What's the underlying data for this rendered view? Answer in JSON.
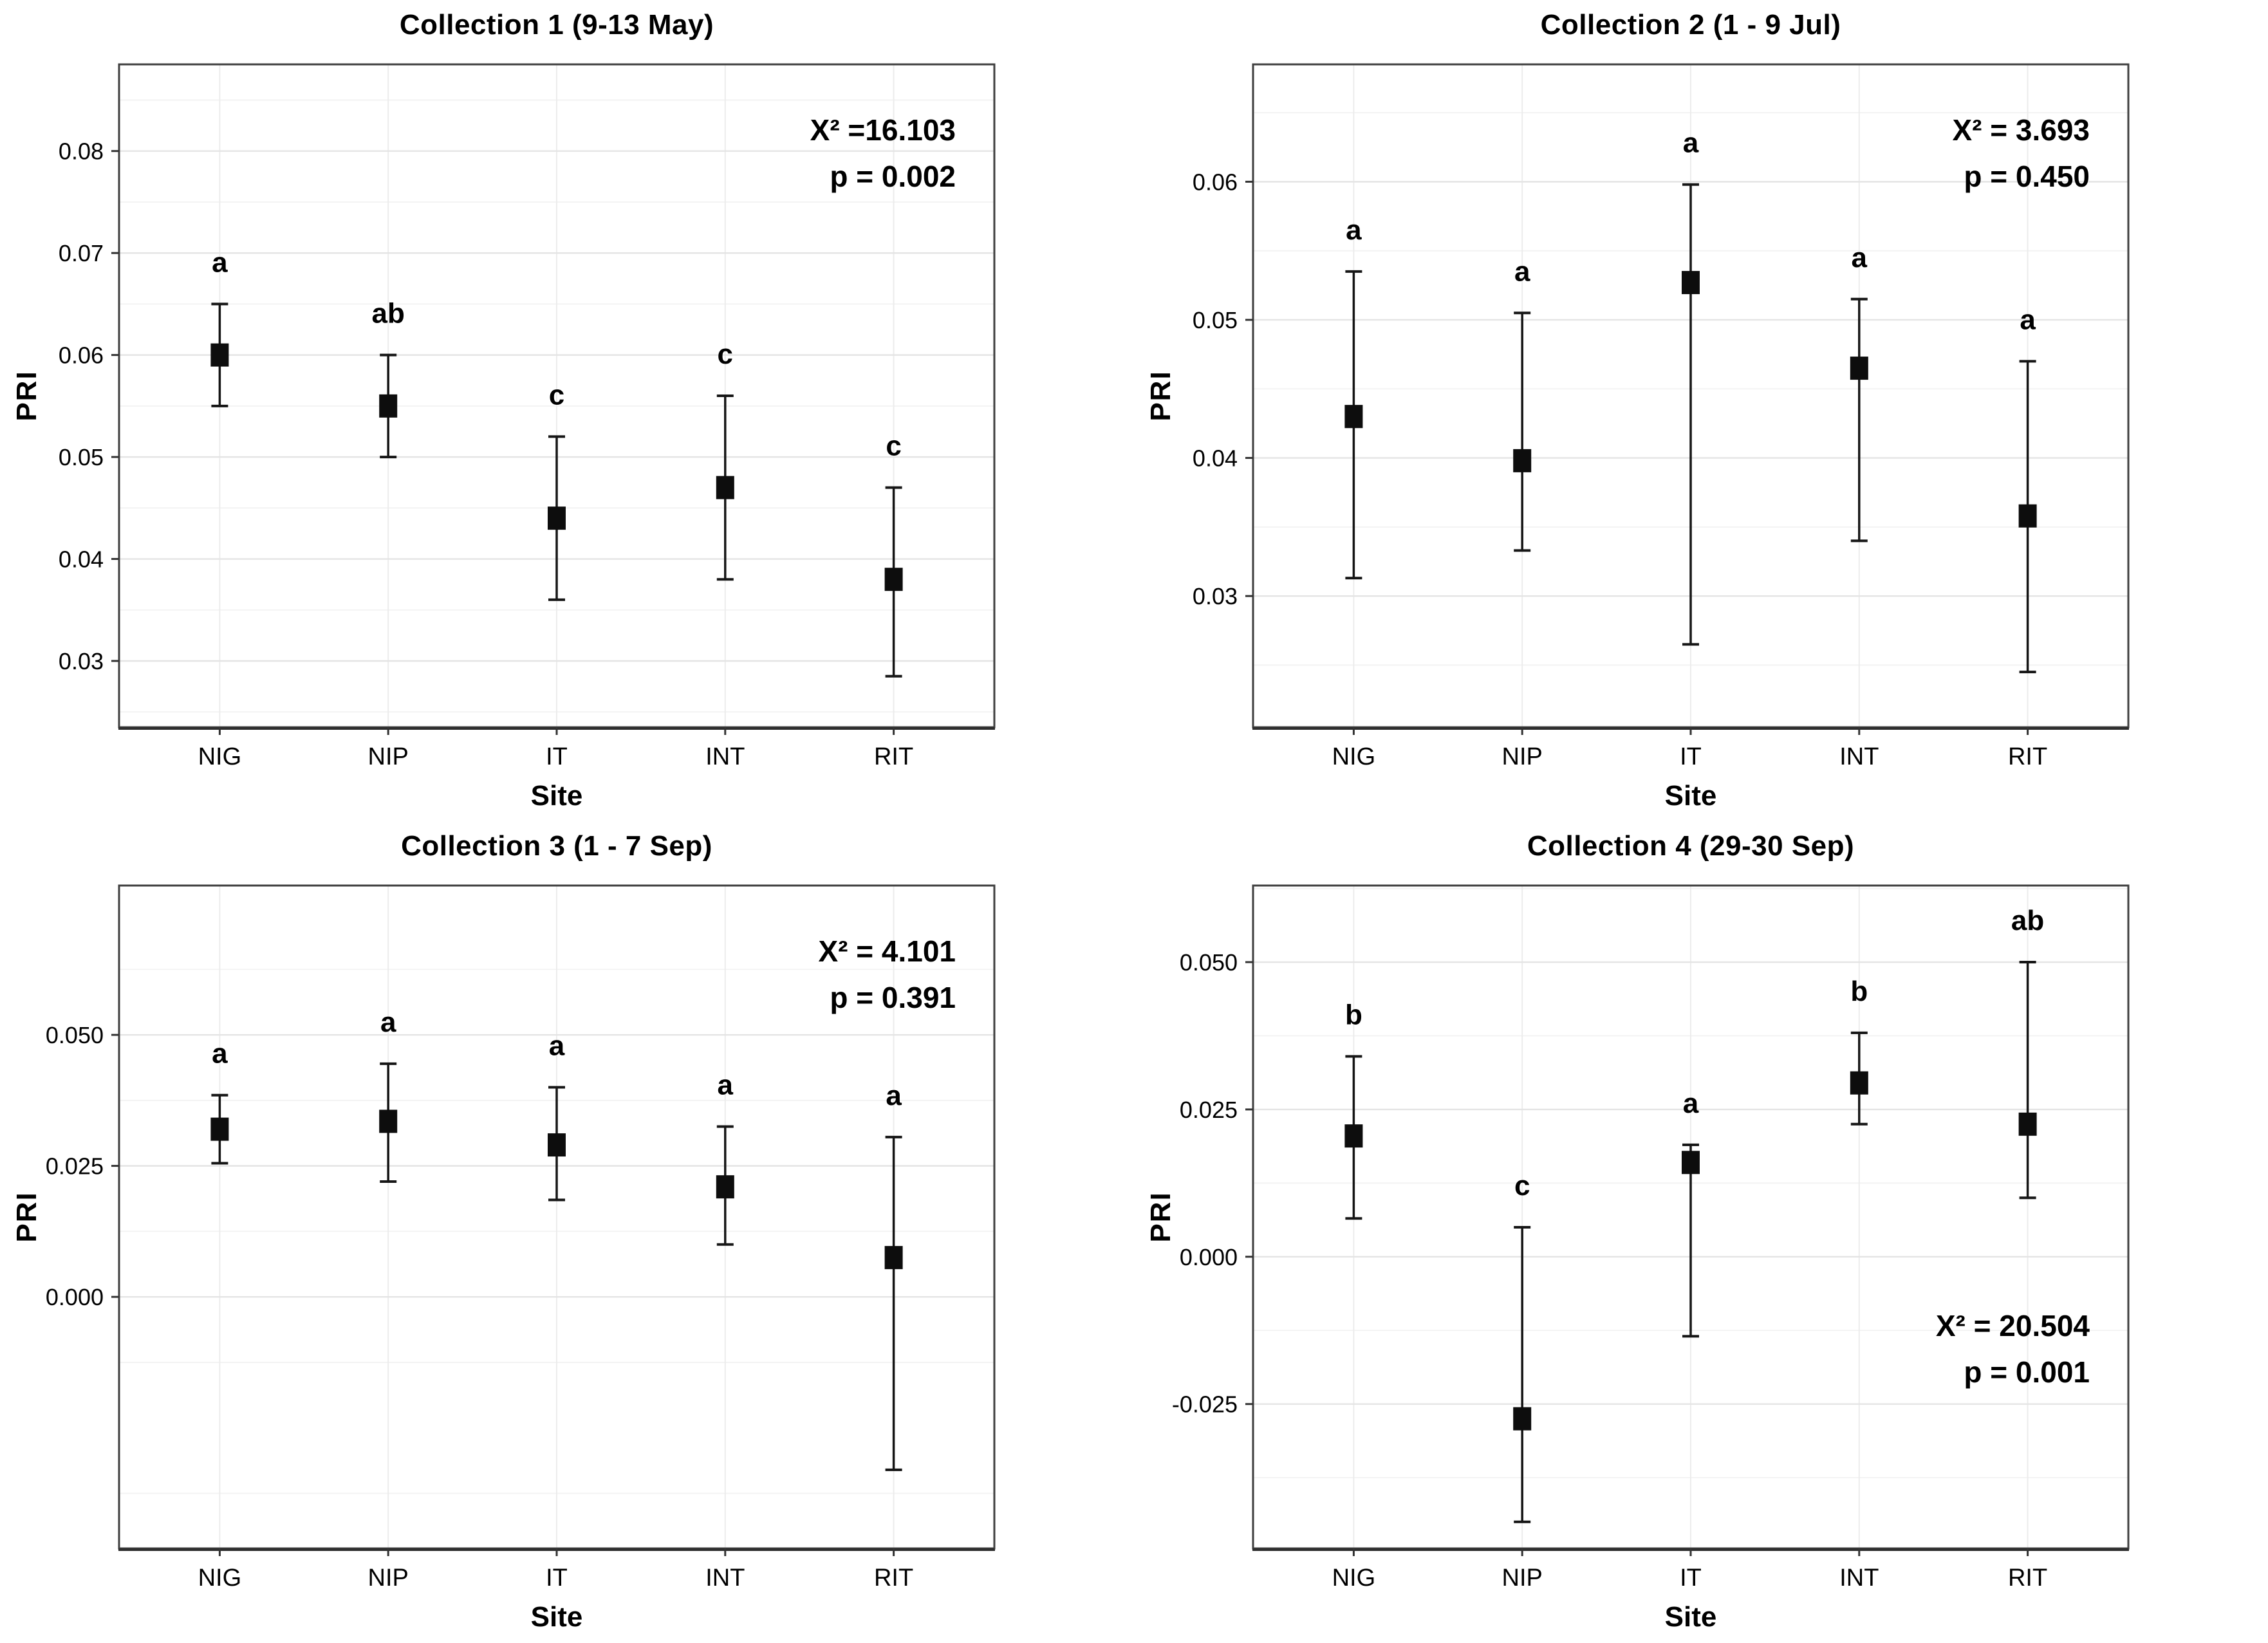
{
  "figure": {
    "x_axis_title": "Site",
    "y_axis_title": "PRI",
    "sites": [
      "NIG",
      "NIP",
      "IT",
      "INT",
      "RIT"
    ]
  },
  "style": {
    "background": "#ffffff",
    "marker_color": "#0d0d0d",
    "errorbar_color": "#161616",
    "grid_major": "#e4e4e4",
    "grid_minor": "#f2f2f2",
    "grid_vertical": "#ececec",
    "border": "#3f3f3f",
    "axis_tick": "#333333",
    "text": "#000000"
  },
  "chart_data": [
    {
      "type": "scatter",
      "subtype": "mean-errorbar",
      "title": "Collection 1 (9-13 May)",
      "xlabel": "Site",
      "ylabel": "PRI",
      "categories": [
        "NIG",
        "NIP",
        "IT",
        "INT",
        "RIT"
      ],
      "ylim": [
        0.0235,
        0.0885
      ],
      "grid": true,
      "yticks": [
        {
          "value": 0.03,
          "label": "0.03"
        },
        {
          "value": 0.04,
          "label": "0.04"
        },
        {
          "value": 0.05,
          "label": "0.05"
        },
        {
          "value": 0.06,
          "label": "0.06"
        },
        {
          "value": 0.07,
          "label": "0.07"
        },
        {
          "value": 0.08,
          "label": "0.08"
        }
      ],
      "series": [
        {
          "site": "NIG",
          "mean": 0.06,
          "lower": 0.055,
          "upper": 0.065,
          "letter": "a"
        },
        {
          "site": "NIP",
          "mean": 0.055,
          "lower": 0.05,
          "upper": 0.06,
          "letter": "ab"
        },
        {
          "site": "IT",
          "mean": 0.044,
          "lower": 0.036,
          "upper": 0.052,
          "letter": "c"
        },
        {
          "site": "INT",
          "mean": 0.047,
          "lower": 0.038,
          "upper": 0.056,
          "letter": "c"
        },
        {
          "site": "RIT",
          "mean": 0.038,
          "lower": 0.0285,
          "upper": 0.047,
          "letter": "c"
        }
      ],
      "stats": {
        "chi_square": "X² =16.103",
        "p_value": "p = 0.002",
        "position": "top-right"
      }
    },
    {
      "type": "scatter",
      "subtype": "mean-errorbar",
      "title": "Collection 2 (1 - 9 Jul)",
      "xlabel": "Site",
      "ylabel": "PRI",
      "categories": [
        "NIG",
        "NIP",
        "IT",
        "INT",
        "RIT"
      ],
      "ylim": [
        0.0205,
        0.0685
      ],
      "grid": true,
      "yticks": [
        {
          "value": 0.03,
          "label": "0.03"
        },
        {
          "value": 0.04,
          "label": "0.04"
        },
        {
          "value": 0.05,
          "label": "0.05"
        },
        {
          "value": 0.06,
          "label": "0.06"
        }
      ],
      "series": [
        {
          "site": "NIG",
          "mean": 0.043,
          "lower": 0.0313,
          "upper": 0.0535,
          "letter": "a"
        },
        {
          "site": "NIP",
          "mean": 0.0398,
          "lower": 0.0333,
          "upper": 0.0505,
          "letter": "a"
        },
        {
          "site": "IT",
          "mean": 0.0527,
          "lower": 0.0265,
          "upper": 0.0598,
          "letter": "a"
        },
        {
          "site": "INT",
          "mean": 0.0465,
          "lower": 0.034,
          "upper": 0.0515,
          "letter": "a"
        },
        {
          "site": "RIT",
          "mean": 0.0358,
          "lower": 0.0245,
          "upper": 0.047,
          "letter": "a"
        }
      ],
      "stats": {
        "chi_square": "X² = 3.693",
        "p_value": "p = 0.450",
        "position": "top-right"
      }
    },
    {
      "type": "scatter",
      "subtype": "mean-errorbar",
      "title": "Collection 3 (1 - 7 Sep)",
      "xlabel": "Site",
      "ylabel": "PRI",
      "categories": [
        "NIG",
        "NIP",
        "IT",
        "INT",
        "RIT"
      ],
      "ylim": [
        -0.048,
        0.0785
      ],
      "grid": true,
      "yticks": [
        {
          "value": 0.0,
          "label": "0.000"
        },
        {
          "value": 0.025,
          "label": "0.025"
        },
        {
          "value": 0.05,
          "label": "0.050"
        }
      ],
      "series": [
        {
          "site": "NIG",
          "mean": 0.032,
          "lower": 0.0255,
          "upper": 0.0385,
          "letter": "a"
        },
        {
          "site": "NIP",
          "mean": 0.0335,
          "lower": 0.022,
          "upper": 0.0445,
          "letter": "a"
        },
        {
          "site": "IT",
          "mean": 0.029,
          "lower": 0.0185,
          "upper": 0.04,
          "letter": "a"
        },
        {
          "site": "INT",
          "mean": 0.021,
          "lower": 0.01,
          "upper": 0.0325,
          "letter": "a"
        },
        {
          "site": "RIT",
          "mean": 0.0075,
          "lower": -0.033,
          "upper": 0.0305,
          "letter": "a"
        }
      ],
      "stats": {
        "chi_square": "X² = 4.101",
        "p_value": "p = 0.391",
        "position": "top-right"
      }
    },
    {
      "type": "scatter",
      "subtype": "mean-errorbar",
      "title": "Collection 4 (29-30 Sep)",
      "xlabel": "Site",
      "ylabel": "PRI",
      "categories": [
        "NIG",
        "NIP",
        "IT",
        "INT",
        "RIT"
      ],
      "ylim": [
        -0.0495,
        0.063
      ],
      "grid": true,
      "yticks": [
        {
          "value": -0.025,
          "label": "-0.025"
        },
        {
          "value": 0.0,
          "label": "0.000"
        },
        {
          "value": 0.025,
          "label": "0.025"
        },
        {
          "value": 0.05,
          "label": "0.050"
        }
      ],
      "series": [
        {
          "site": "NIG",
          "mean": 0.0205,
          "lower": 0.0065,
          "upper": 0.034,
          "letter": "b"
        },
        {
          "site": "NIP",
          "mean": -0.0275,
          "lower": -0.045,
          "upper": 0.005,
          "letter": "c"
        },
        {
          "site": "IT",
          "mean": 0.016,
          "lower": -0.0135,
          "upper": 0.019,
          "letter": "a"
        },
        {
          "site": "INT",
          "mean": 0.0295,
          "lower": 0.0225,
          "upper": 0.038,
          "letter": "b"
        },
        {
          "site": "RIT",
          "mean": 0.0225,
          "lower": 0.01,
          "upper": 0.05,
          "letter": "ab"
        }
      ],
      "stats": {
        "chi_square": "X² = 20.504",
        "p_value": "p = 0.001",
        "position": "bottom-right"
      }
    }
  ]
}
